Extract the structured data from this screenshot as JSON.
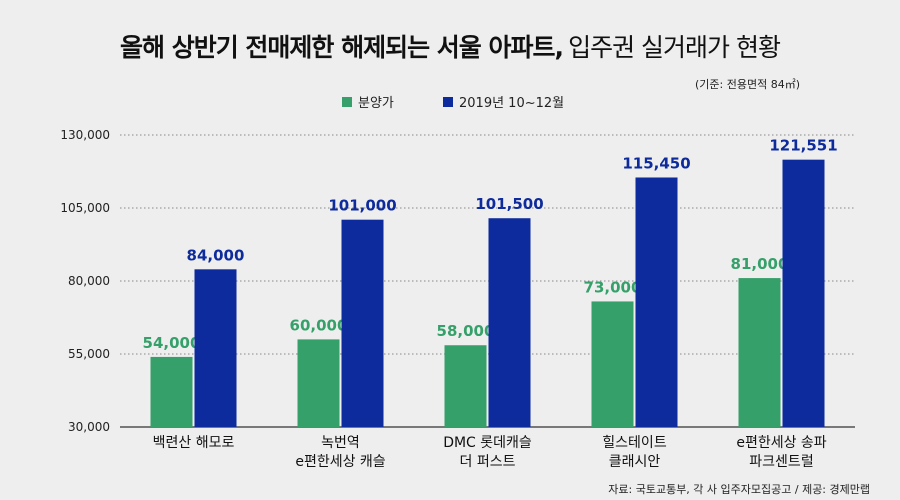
{
  "title_main": "올해 상반기 전매제한 해제되는 서울 아파트,",
  "title_sub": "입주권 실거래가 현황",
  "subnote": "(기준: 전용면적 84㎡)",
  "source": "자료: 국토교통부, 각 사 입주자모집공고 / 제공: 경제만랩",
  "colors": {
    "background": "#eeeeee",
    "sale_price": "#36a06a",
    "recent_price": "#0d2b9c",
    "grid": "#888888"
  },
  "chart_data": {
    "type": "bar",
    "title": "올해 상반기 전매제한 해제되는 서울 아파트, 입주권 실거래가 현황",
    "xlabel": "",
    "ylabel": "",
    "ylim": [
      30000,
      130000
    ],
    "yticks": [
      "30,000",
      "55,000",
      "80,000",
      "105,000",
      "130,000"
    ],
    "ytick_values": [
      30000,
      55000,
      80000,
      105000,
      130000
    ],
    "grid": true,
    "legend_position": "top-center",
    "categories": [
      [
        "백련산 해모로"
      ],
      [
        "녹번역",
        "e편한세상 캐슬"
      ],
      [
        "DMC 롯데캐슬",
        "더 퍼스트"
      ],
      [
        "힐스테이트",
        "클래시안"
      ],
      [
        "e편한세상 송파",
        "파크센트럴"
      ]
    ],
    "series": [
      {
        "name": "분양가",
        "color_key": "sale_price",
        "values": [
          54000,
          60000,
          58000,
          73000,
          81000
        ],
        "labels": [
          "54,000",
          "60,000",
          "58,000",
          "73,000",
          "81,000"
        ]
      },
      {
        "name": "2019년 10~12월",
        "color_key": "recent_price",
        "values": [
          84000,
          101000,
          101500,
          115450,
          121551
        ],
        "labels": [
          "84,000",
          "101,000",
          "101,500",
          "115,450",
          "121,551"
        ]
      }
    ]
  }
}
